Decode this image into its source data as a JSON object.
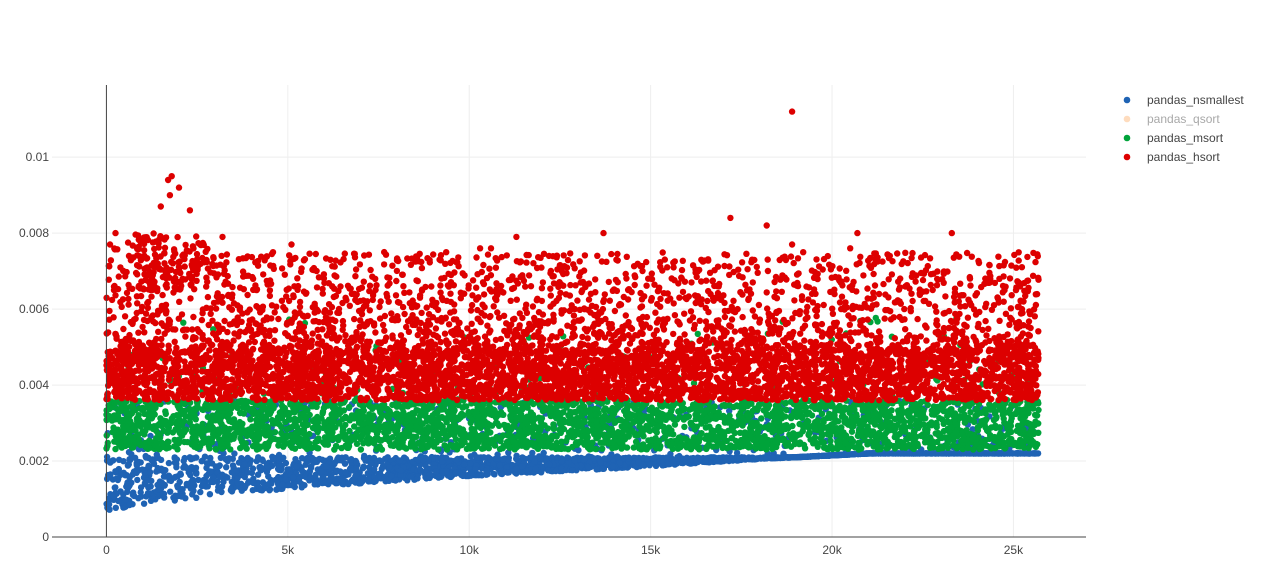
{
  "chart_data": {
    "type": "scatter",
    "title": "",
    "xlabel": "",
    "ylabel": "",
    "xlim": [
      -1500,
      27000
    ],
    "ylim": [
      0,
      0.0119
    ],
    "grid": true,
    "legend_position": "top-right",
    "x_ticks": [
      {
        "value": 0,
        "label": "0"
      },
      {
        "value": 5000,
        "label": "5k"
      },
      {
        "value": 10000,
        "label": "10k"
      },
      {
        "value": 15000,
        "label": "15k"
      },
      {
        "value": 20000,
        "label": "20k"
      },
      {
        "value": 25000,
        "label": "25k"
      }
    ],
    "y_ticks": [
      {
        "value": 0,
        "label": "0"
      },
      {
        "value": 0.002,
        "label": "0.002"
      },
      {
        "value": 0.004,
        "label": "0.004"
      },
      {
        "value": 0.006,
        "label": "0.006"
      },
      {
        "value": 0.008,
        "label": "0.008"
      },
      {
        "value": 0.01,
        "label": "0.01"
      }
    ],
    "x_range": [
      0,
      25700
    ],
    "series": [
      {
        "name": "pandas_nsmallest",
        "color": "#1f63b4",
        "visible": true,
        "band_lower": [
          [
            0,
            0.0007
          ],
          [
            3000,
            0.0011
          ],
          [
            6000,
            0.00135
          ],
          [
            10000,
            0.0016
          ],
          [
            14000,
            0.0018
          ],
          [
            18000,
            0.00205
          ],
          [
            21000,
            0.0022
          ],
          [
            25700,
            0.0022
          ]
        ],
        "band_upper": [
          [
            0,
            0.0021
          ],
          [
            25700,
            0.0021
          ]
        ],
        "overlap_upper": 0.0036
      },
      {
        "name": "pandas_qsort",
        "color": "#fdb97d",
        "visible": false
      },
      {
        "name": "pandas_msort",
        "color": "#00a33a",
        "visible": true,
        "band": [
          0.0023,
          0.0036
        ],
        "scatter_upper": 0.0058
      },
      {
        "name": "pandas_hsort",
        "color": "#dd0000",
        "visible": true,
        "band": [
          0.0036,
          0.0049
        ],
        "scatter_upper": 0.0075,
        "outliers": [
          {
            "x": 18900,
            "y": 0.0112
          },
          {
            "x": 1700,
            "y": 0.0094
          },
          {
            "x": 1800,
            "y": 0.0095
          },
          {
            "x": 2000,
            "y": 0.0092
          },
          {
            "x": 1750,
            "y": 0.009
          },
          {
            "x": 17200,
            "y": 0.0084
          },
          {
            "x": 18200,
            "y": 0.0082
          },
          {
            "x": 20700,
            "y": 0.008
          },
          {
            "x": 13700,
            "y": 0.008
          },
          {
            "x": 23300,
            "y": 0.008
          },
          {
            "x": 3200,
            "y": 0.0079
          },
          {
            "x": 11300,
            "y": 0.0079
          },
          {
            "x": 5100,
            "y": 0.0077
          },
          {
            "x": 10300,
            "y": 0.0076
          },
          {
            "x": 10600,
            "y": 0.0076
          },
          {
            "x": 18900,
            "y": 0.0077
          },
          {
            "x": 20500,
            "y": 0.0076
          },
          {
            "x": 250,
            "y": 0.008
          },
          {
            "x": 100,
            "y": 0.0077
          },
          {
            "x": 1500,
            "y": 0.0087
          },
          {
            "x": 2300,
            "y": 0.0086
          }
        ]
      }
    ]
  }
}
